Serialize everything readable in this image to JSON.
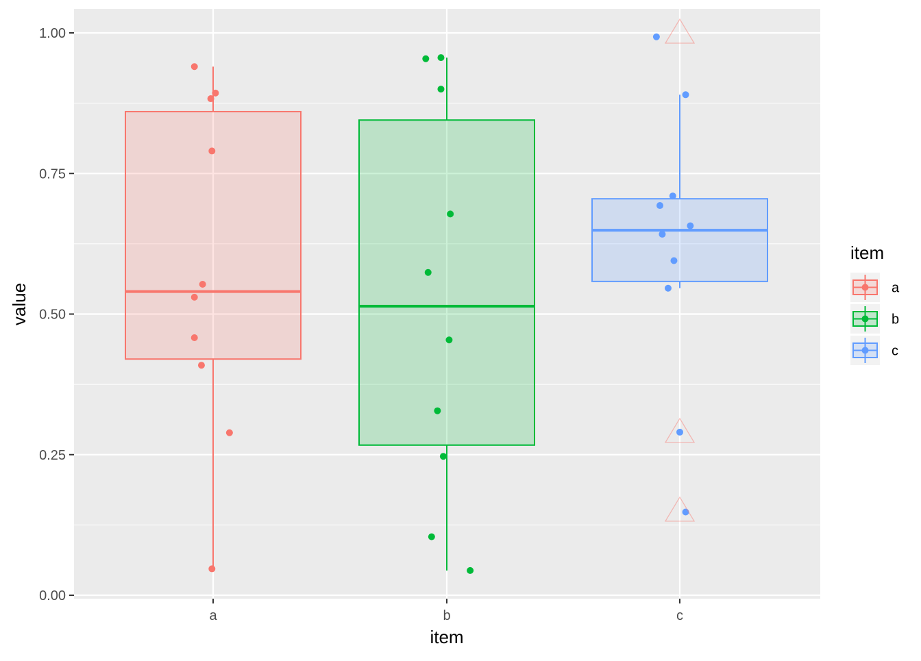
{
  "chart_data": {
    "type": "boxplot",
    "xlabel": "item",
    "ylabel": "value",
    "categories": [
      "a",
      "b",
      "c"
    ],
    "ylim": [
      -0.005,
      1.04
    ],
    "y_ticks": [
      0.0,
      0.25,
      0.5,
      0.75,
      1.0
    ],
    "y_tick_labels": [
      "0.00",
      "0.25",
      "0.50",
      "0.75",
      "1.00"
    ],
    "grid": true,
    "legend": {
      "title": "item",
      "placement": "right",
      "entries": [
        "a",
        "b",
        "c"
      ]
    },
    "colors": {
      "a": "#F8766D",
      "b": "#00BA38",
      "c": "#619CFF",
      "panel_bg": "#EBEBEB",
      "grid": "#FFFFFF",
      "outlier_marker": "#F8766D"
    },
    "series": [
      {
        "name": "a",
        "box": {
          "q1": 0.42,
          "median": 0.54,
          "q3": 0.86,
          "whisker_low": 0.047,
          "whisker_high": 0.94
        },
        "points": [
          {
            "x": -0.08,
            "y": 0.94
          },
          {
            "x": 0.01,
            "y": 0.893
          },
          {
            "x": -0.01,
            "y": 0.883
          },
          {
            "x": -0.005,
            "y": 0.79
          },
          {
            "x": -0.045,
            "y": 0.553
          },
          {
            "x": -0.08,
            "y": 0.53
          },
          {
            "x": -0.08,
            "y": 0.458
          },
          {
            "x": -0.05,
            "y": 0.409
          },
          {
            "x": 0.07,
            "y": 0.289
          },
          {
            "x": -0.005,
            "y": 0.047
          }
        ]
      },
      {
        "name": "b",
        "box": {
          "q1": 0.267,
          "median": 0.514,
          "q3": 0.845,
          "whisker_low": 0.044,
          "whisker_high": 0.956
        },
        "points": [
          {
            "x": -0.09,
            "y": 0.954
          },
          {
            "x": -0.025,
            "y": 0.956
          },
          {
            "x": -0.025,
            "y": 0.9
          },
          {
            "x": 0.015,
            "y": 0.678
          },
          {
            "x": -0.08,
            "y": 0.574
          },
          {
            "x": 0.01,
            "y": 0.454
          },
          {
            "x": -0.04,
            "y": 0.328
          },
          {
            "x": -0.015,
            "y": 0.247
          },
          {
            "x": -0.065,
            "y": 0.104
          },
          {
            "x": 0.1,
            "y": 0.044
          }
        ]
      },
      {
        "name": "c",
        "box": {
          "q1": 0.558,
          "median": 0.649,
          "q3": 0.705,
          "whisker_low": 0.546,
          "whisker_high": 0.89
        },
        "outliers": [
          1.0,
          0.29,
          0.15
        ],
        "points": [
          {
            "x": -0.1,
            "y": 0.993
          },
          {
            "x": 0.025,
            "y": 0.89
          },
          {
            "x": -0.03,
            "y": 0.71
          },
          {
            "x": -0.085,
            "y": 0.693
          },
          {
            "x": 0.045,
            "y": 0.657
          },
          {
            "x": -0.075,
            "y": 0.642
          },
          {
            "x": -0.025,
            "y": 0.595
          },
          {
            "x": -0.05,
            "y": 0.546
          },
          {
            "x": 0.0,
            "y": 0.29
          },
          {
            "x": 0.025,
            "y": 0.148
          }
        ]
      }
    ]
  }
}
